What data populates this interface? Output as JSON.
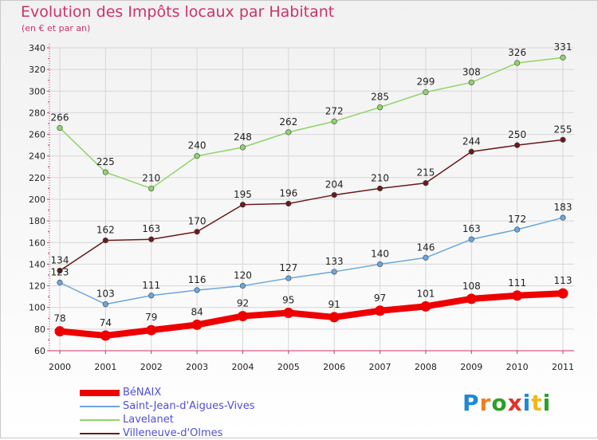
{
  "header": {
    "title": "Evolution des Impôts locaux par Habitant",
    "subtitle": "(en € et par an)"
  },
  "logo": {
    "letters": [
      "P",
      "r",
      "o",
      "x",
      "i",
      "t",
      "i"
    ],
    "colors": [
      "#1f87d6",
      "#f07c1f",
      "#2aa02a",
      "#e3322b",
      "#1f87d6",
      "#f2b81b",
      "#2aa02a"
    ]
  },
  "chart_data": {
    "type": "line",
    "x": [
      "2000",
      "2001",
      "2002",
      "2003",
      "2004",
      "2005",
      "2006",
      "2007",
      "2008",
      "2009",
      "2010",
      "2011"
    ],
    "ylim": [
      60,
      340
    ],
    "yticks": [
      60,
      80,
      100,
      120,
      140,
      160,
      180,
      200,
      220,
      240,
      260,
      280,
      300,
      320,
      340
    ],
    "grid": true,
    "legend": "bottom-left",
    "series": [
      {
        "name": "Villeneuve-d'Olmes",
        "color": "#6b1a1a",
        "values": [
          134,
          162,
          163,
          170,
          195,
          196,
          204,
          210,
          215,
          244,
          250,
          255
        ]
      },
      {
        "name": "Lavelanet",
        "color": "#8fd46a",
        "values": [
          266,
          225,
          210,
          240,
          248,
          262,
          272,
          285,
          299,
          308,
          326,
          331
        ]
      },
      {
        "name": "Saint-Jean-d'Aigues-Vives",
        "color": "#6aa6dc",
        "values": [
          123,
          103,
          111,
          116,
          120,
          127,
          133,
          140,
          146,
          163,
          172,
          183
        ]
      },
      {
        "name": "BéNAIX",
        "color": "#ee0000",
        "values": [
          78,
          74,
          79,
          84,
          92,
          95,
          91,
          97,
          101,
          108,
          111,
          113
        ]
      }
    ]
  },
  "legend_order": [
    "BéNAIX",
    "Saint-Jean-d'Aigues-Vives",
    "Lavelanet",
    "Villeneuve-d'Olmes"
  ]
}
